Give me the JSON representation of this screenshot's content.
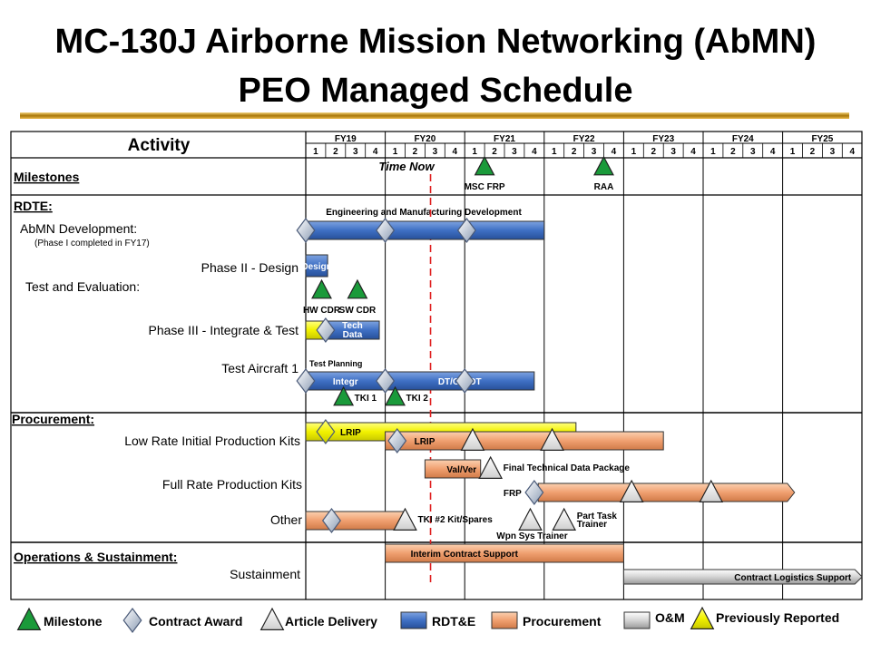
{
  "header": {
    "title_line1": "MC-130J Airborne Mission Networking (AbMN)",
    "title_line2": "PEO Managed Schedule"
  },
  "grid": {
    "activity_header": "Activity",
    "fiscal_years": [
      "FY19",
      "FY20",
      "FY21",
      "FY22",
      "FY23",
      "FY24",
      "FY25"
    ],
    "quarters": [
      "1",
      "2",
      "3",
      "4"
    ],
    "time_now_label": "Time Now",
    "time_now_quarter": 6.28
  },
  "rows": {
    "milestones": "Milestones",
    "rdte": "RDTE:",
    "abmn_dev": "AbMN Development:",
    "abmn_note": "(Phase I completed in FY17)",
    "phase2": "Phase II - Design",
    "test_eval": "Test and Evaluation:",
    "phase3": "Phase III - Integrate & Test",
    "test_aircraft": "Test Aircraft 1",
    "procurement": "Procurement:",
    "lrip_kits": "Low Rate Initial Production Kits",
    "frp_kits": "Full Rate Production Kits",
    "other": "Other",
    "ops": "Operations & Sustainment:",
    "sustainment": "Sustainment"
  },
  "bars": [
    {
      "id": "emd",
      "kind": "rdte",
      "start": 0.0,
      "end": 12.0,
      "row": "abmn_dev"
    },
    {
      "id": "design",
      "kind": "rdte",
      "start": 0.0,
      "end": 1.1,
      "row": "phase2",
      "label": "Design"
    },
    {
      "id": "phase3-prev",
      "kind": "prev",
      "start": 0.0,
      "end": 1.0,
      "row": "phase3"
    },
    {
      "id": "tech-data",
      "kind": "rdte",
      "start": 1.0,
      "end": 3.7,
      "row": "phase3",
      "label": "Tech Data"
    },
    {
      "id": "integr",
      "kind": "rdte",
      "start": 0.0,
      "end": 4.0,
      "row": "test_aircraft",
      "label": "Integr"
    },
    {
      "id": "dtoaot",
      "kind": "rdte",
      "start": 4.0,
      "end": 11.5,
      "row": "test_aircraft",
      "label": "DT/OA/OT"
    },
    {
      "id": "lrip-prev",
      "kind": "prev",
      "start": 0.0,
      "end": 13.6,
      "row": "lrip_a",
      "label": "LRIP"
    },
    {
      "id": "lrip",
      "kind": "proc",
      "start": 4.0,
      "end": 18.0,
      "row": "lrip_b",
      "label": "LRIP"
    },
    {
      "id": "valver",
      "kind": "proc",
      "start": 6.0,
      "end": 8.8,
      "row": "valver",
      "label": "Val/Ver"
    },
    {
      "id": "frp",
      "kind": "proc",
      "start": 11.7,
      "end": 24.6,
      "row": "frp",
      "arrow": true
    },
    {
      "id": "other",
      "kind": "proc",
      "start": 0.0,
      "end": 5.0,
      "row": "other"
    },
    {
      "id": "ics",
      "kind": "proc",
      "start": 4.0,
      "end": 16.0,
      "row": "ics",
      "label": "Interim Contract Support"
    },
    {
      "id": "cls",
      "kind": "om",
      "start": 16.0,
      "end": 28.0,
      "row": "cls",
      "label": "Contract Logistics Support",
      "arrow": true
    }
  ],
  "markers": [
    {
      "type": "milestone",
      "q": 9.0,
      "row": "milestones",
      "label": "MSC FRP"
    },
    {
      "type": "milestone",
      "q": 15.0,
      "row": "milestones",
      "label": "RAA"
    },
    {
      "type": "contract",
      "q": 0.0,
      "row": "abmn_dev"
    },
    {
      "type": "contract",
      "q": 4.0,
      "row": "abmn_dev"
    },
    {
      "type": "contract",
      "q": 8.1,
      "row": "abmn_dev"
    },
    {
      "type": "milestone",
      "q": 0.8,
      "row": "cdr",
      "label": "HW CDR"
    },
    {
      "type": "milestone",
      "q": 2.6,
      "row": "cdr",
      "label": "SW CDR"
    },
    {
      "type": "contract",
      "q": 1.0,
      "row": "phase3"
    },
    {
      "type": "contract",
      "q": 0.0,
      "row": "test_aircraft"
    },
    {
      "type": "contract",
      "q": 4.0,
      "row": "test_aircraft"
    },
    {
      "type": "contract",
      "q": 8.0,
      "row": "test_aircraft"
    },
    {
      "type": "milestone",
      "q": 1.9,
      "row": "tki",
      "label": "TKI 1"
    },
    {
      "type": "milestone",
      "q": 4.5,
      "row": "tki",
      "label": "TKI 2"
    },
    {
      "type": "prev",
      "q": 1.0,
      "row": "lrip_a"
    },
    {
      "type": "contract",
      "q": 4.6,
      "row": "lrip_b"
    },
    {
      "type": "delivery",
      "q": 8.4,
      "row": "lrip_b"
    },
    {
      "type": "delivery",
      "q": 12.4,
      "row": "lrip_b"
    },
    {
      "type": "delivery",
      "q": 9.3,
      "row": "valver",
      "label": "Final Technical Data Package"
    },
    {
      "type": "contract",
      "q": 11.5,
      "row": "frp",
      "label": "FRP",
      "label_side": "left"
    },
    {
      "type": "delivery",
      "q": 16.4,
      "row": "frp"
    },
    {
      "type": "delivery",
      "q": 20.4,
      "row": "frp"
    },
    {
      "type": "contract",
      "q": 1.3,
      "row": "other"
    },
    {
      "type": "delivery",
      "q": 5.0,
      "row": "other",
      "label": "TKI #2 Kit/Spares"
    },
    {
      "type": "delivery",
      "q": 11.3,
      "row": "other",
      "label": "Wpn Sys Trainer",
      "label_side": "below"
    },
    {
      "type": "delivery",
      "q": 13.0,
      "row": "other",
      "label": "Part Task Trainer"
    }
  ],
  "annotations": {
    "emd": "Engineering and Manufacturing Development",
    "test_planning": "Test Planning"
  },
  "legend": [
    {
      "kind": "milestone",
      "label": "Milestone"
    },
    {
      "kind": "contract",
      "label": "Contract Award"
    },
    {
      "kind": "delivery",
      "label": "Article Delivery"
    },
    {
      "kind": "rdte",
      "label": "RDT&E"
    },
    {
      "kind": "proc",
      "label": "Procurement"
    },
    {
      "kind": "om",
      "label": "O&M"
    },
    {
      "kind": "prev",
      "label": "Previously Reported"
    }
  ],
  "colors": {
    "rdte": "#3f70c4",
    "proc": "#f0a070",
    "om": "#d4d4d4",
    "prev": "#f2f200",
    "milestone": "#1a9a3a",
    "time_now": "#e02020",
    "rule_gold": "#c9940f"
  }
}
